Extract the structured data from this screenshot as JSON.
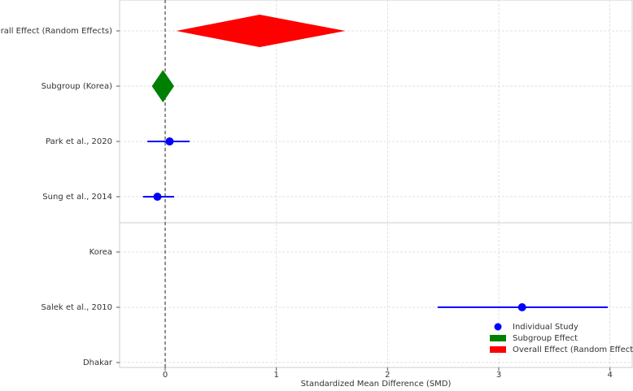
{
  "chart_data": {
    "type": "forest",
    "xlabel": "Standardized Mean Difference (SMD)",
    "categories": [
      "Overall Effect (Random Effects)",
      "Subgroup (Korea)",
      "Park et al., 2020",
      "Sung et al., 2014",
      "Korea",
      "Salek et al., 2010",
      "Dhakar"
    ],
    "series": [
      {
        "name": "Individual Study",
        "color": "#0000ff",
        "shape": "point",
        "values": [
          null,
          null,
          0.04,
          -0.07,
          null,
          3.21,
          null
        ],
        "lower": [
          null,
          null,
          -0.16,
          -0.2,
          null,
          2.45,
          null
        ],
        "upper": [
          null,
          null,
          0.22,
          0.08,
          null,
          3.98,
          null
        ]
      },
      {
        "name": "Subgroup Effect",
        "color": "#008000",
        "shape": "diamond",
        "values": [
          null,
          -0.02,
          null,
          null,
          null,
          null,
          null
        ],
        "lower": [
          null,
          -0.12,
          null,
          null,
          null,
          null,
          null
        ],
        "upper": [
          null,
          0.08,
          null,
          null,
          null,
          null,
          null
        ]
      },
      {
        "name": "Overall Effect (Random Effects)",
        "color": "#ff0000",
        "shape": "diamond",
        "values": [
          0.85,
          null,
          null,
          null,
          null,
          null,
          null
        ],
        "lower": [
          0.1,
          null,
          null,
          null,
          null,
          null,
          null
        ],
        "upper": [
          1.62,
          null,
          null,
          null,
          null,
          null,
          null
        ]
      }
    ],
    "xlim": [
      -0.41,
      4.2
    ],
    "xticks": [
      0,
      1,
      2,
      3,
      4
    ],
    "reference_line": 0,
    "grid": true,
    "legend": "lower right"
  }
}
